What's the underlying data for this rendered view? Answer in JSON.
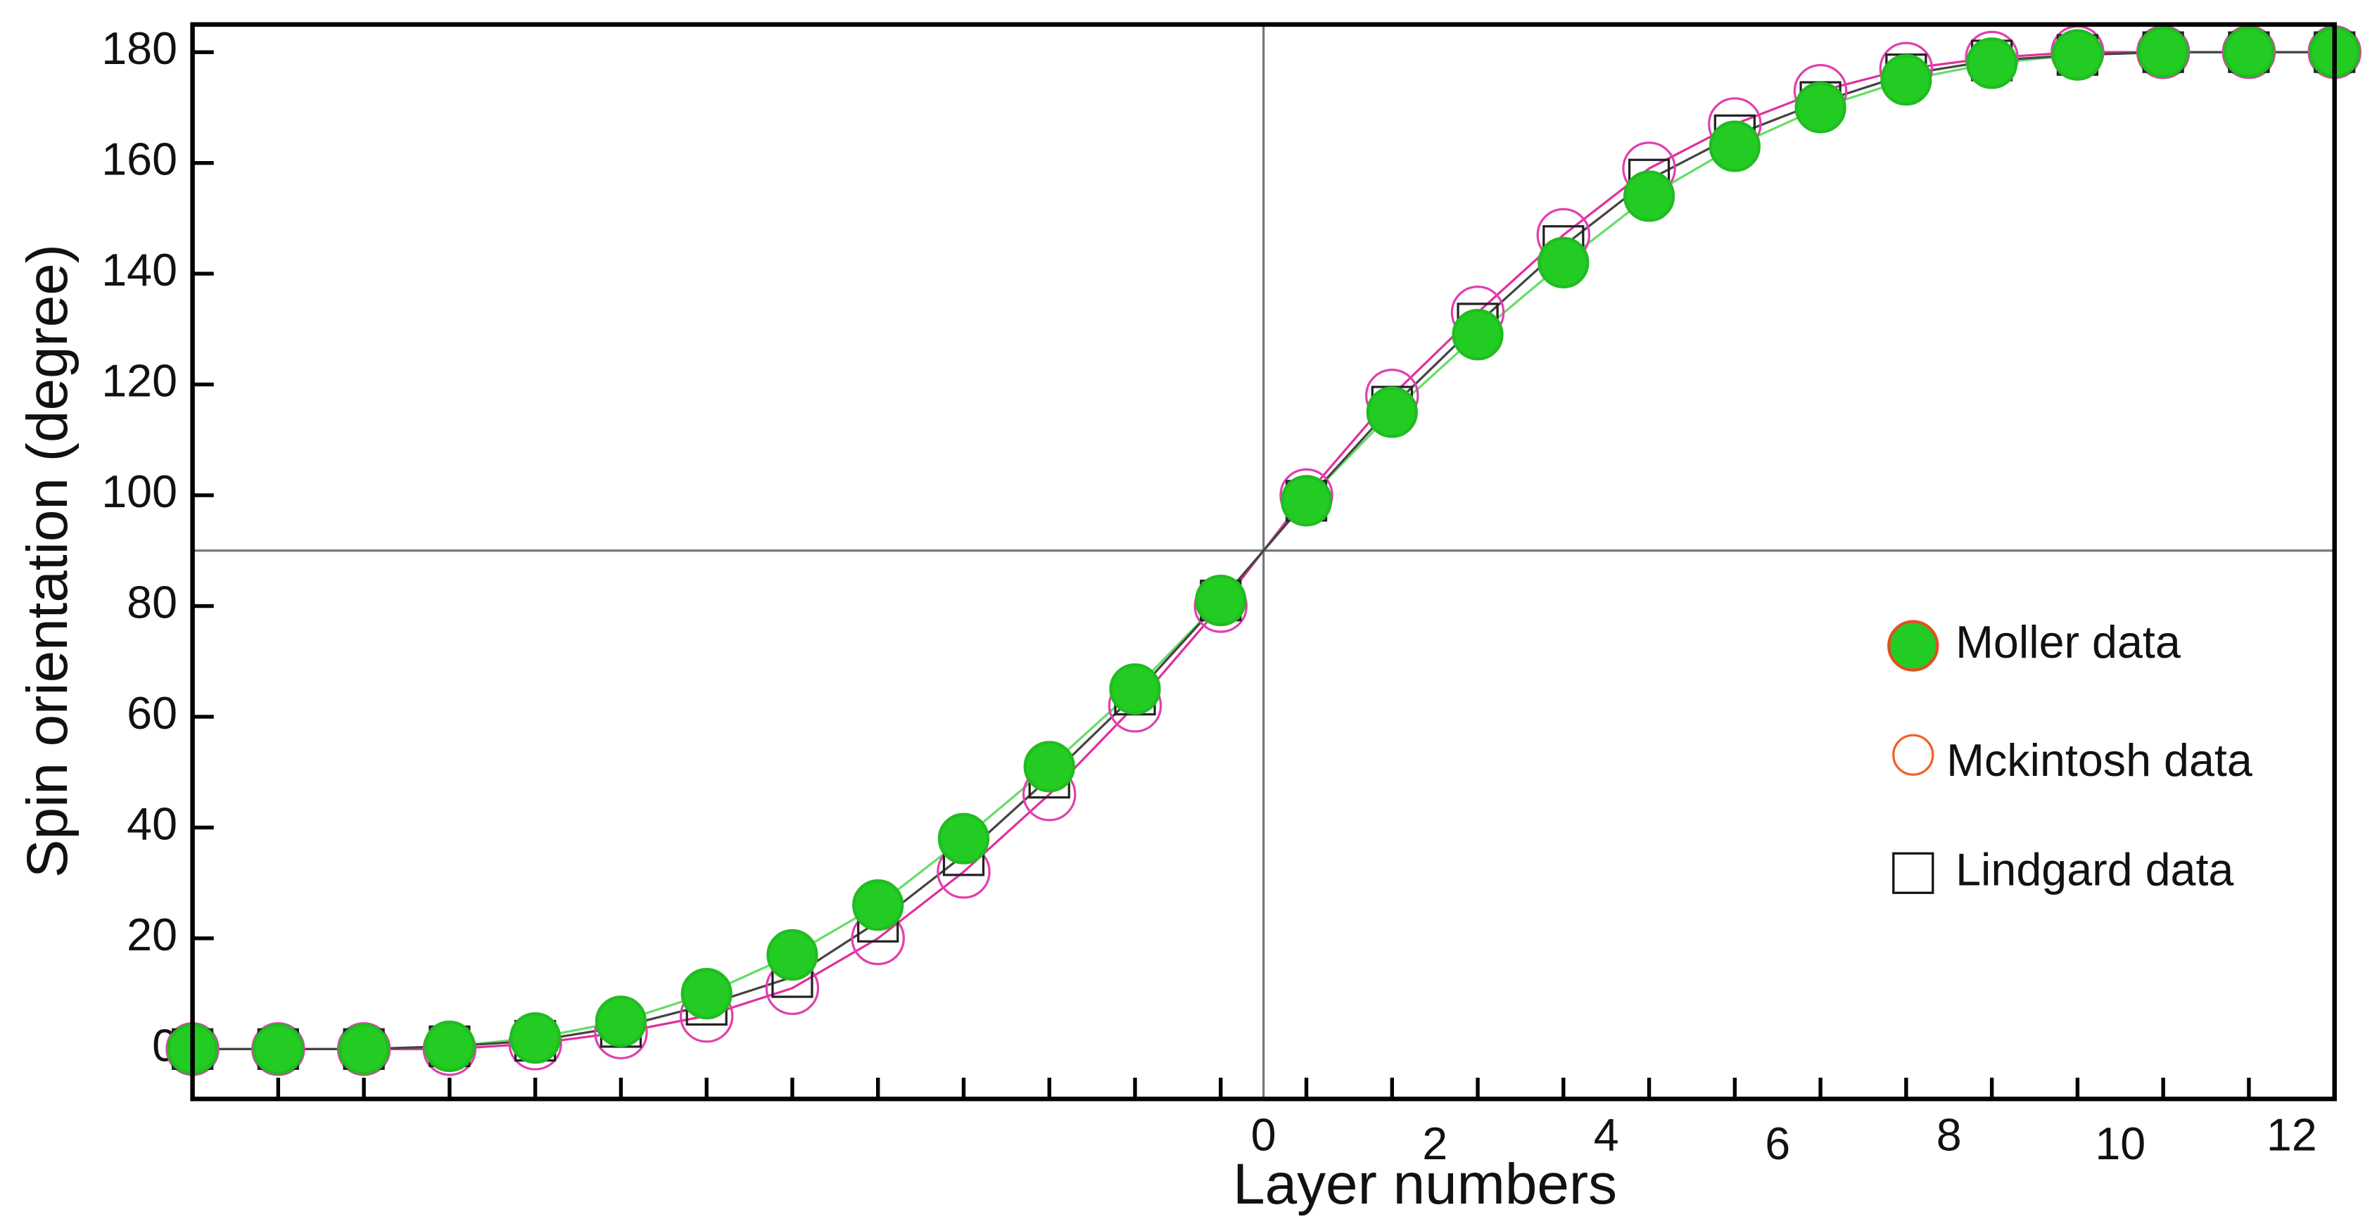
{
  "chart_data": {
    "type": "line",
    "x_label": "Layer numbers",
    "y_label": "Spin orientation  (degree)",
    "x": [
      -12.5,
      -11.5,
      -10.5,
      -9.5,
      -8.5,
      -7.5,
      -6.5,
      -5.5,
      -4.5,
      -3.5,
      -2.5,
      -1.5,
      -0.5,
      0.5,
      1.5,
      2.5,
      3.5,
      4.5,
      5.5,
      6.5,
      7.5,
      8.5,
      9.5,
      10.5,
      11.5,
      12.5
    ],
    "xlim": [
      -12.5,
      12.5
    ],
    "xticks": [
      0,
      2,
      4,
      6,
      8,
      10,
      12
    ],
    "ylim": [
      -9,
      185
    ],
    "yticks": [
      0,
      20,
      40,
      60,
      80,
      100,
      120,
      140,
      160,
      180
    ],
    "reference_lines": {
      "x": 0,
      "y": 90
    },
    "series": [
      {
        "name": "Moller data",
        "marker": "filled-circle",
        "color": "#22cc22",
        "edge_color": "#22bb22",
        "legend_edge_color": "#e05020",
        "line_color": "#66dd66",
        "values": [
          0,
          0,
          0,
          0.5,
          2,
          5,
          10,
          17,
          26,
          38,
          51,
          65,
          81,
          99,
          115,
          129,
          142,
          154,
          163,
          170,
          175,
          178,
          179.5,
          180,
          180,
          180
        ]
      },
      {
        "name": "Mckintosh data",
        "marker": "circle",
        "color": "#e040b0",
        "legend_edge_color": "#f06020",
        "line_color": "#e0309a",
        "values": [
          0,
          0,
          0,
          0,
          1,
          3,
          6,
          11,
          20,
          32,
          46,
          62,
          80,
          100,
          118,
          133,
          147,
          159,
          167,
          173,
          177,
          179,
          180,
          180,
          180,
          180
        ]
      },
      {
        "name": "Lindgard data",
        "marker": "square",
        "color": "#222222",
        "legend_edge_color": "#111111",
        "line_color": "#444444",
        "values": [
          0,
          0,
          0,
          0.5,
          1.5,
          4,
          8,
          13,
          23,
          35,
          49,
          64,
          81,
          99,
          116,
          131,
          145,
          157,
          165,
          171,
          176,
          178.5,
          179.5,
          180,
          180,
          180
        ]
      }
    ]
  }
}
